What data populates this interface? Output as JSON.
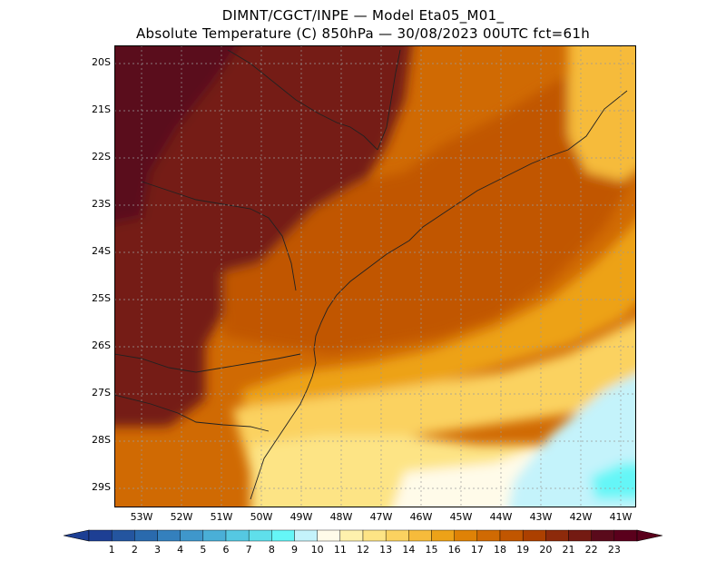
{
  "title_line1": "DIMNT/CGCT/INPE —  Model Eta05_M01_",
  "title_line2": "Absolute Temperature (C) 850hPa —  30/08/2023 00UTC fct=61h",
  "map": {
    "lat_labels": [
      "20S",
      "21S",
      "22S",
      "23S",
      "24S",
      "25S",
      "26S",
      "27S",
      "28S",
      "29S"
    ],
    "lon_labels": [
      "53W",
      "52W",
      "51W",
      "50W",
      "49W",
      "48W",
      "47W",
      "46W",
      "45W",
      "44W",
      "43W",
      "42W",
      "41W"
    ]
  },
  "colorbar": {
    "levels": [
      "1",
      "2",
      "3",
      "4",
      "5",
      "6",
      "7",
      "8",
      "9",
      "10",
      "11",
      "12",
      "13",
      "14",
      "15",
      "16",
      "17",
      "18",
      "19",
      "20",
      "21",
      "22",
      "23"
    ],
    "colors": [
      "#1d3f94",
      "#24559f",
      "#2a6aad",
      "#3480bd",
      "#3f97cb",
      "#4aafd7",
      "#55c8e2",
      "#5fdfeb",
      "#65f6f7",
      "#c4f3fb",
      "#fffbe9",
      "#fef1ad",
      "#fde485",
      "#fbd260",
      "#f6bb3b",
      "#eda218",
      "#df8206",
      "#d06a03",
      "#c15600",
      "#ac4000",
      "#8d2a0b",
      "#741a12",
      "#5a0a1b",
      "#5a001c"
    ],
    "low_cap_color": "#1d3f94",
    "high_cap_color": "#5a001c"
  }
}
